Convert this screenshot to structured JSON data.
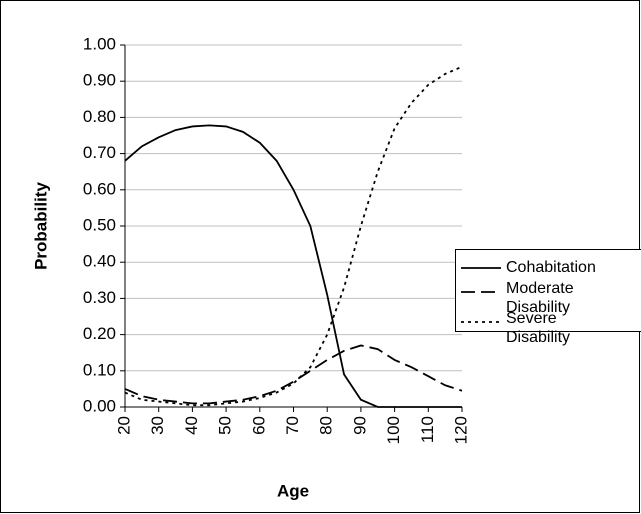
{
  "chart_data": {
    "type": "line",
    "xlabel": "Age",
    "ylabel": "Probability",
    "x": [
      20,
      25,
      30,
      35,
      40,
      45,
      50,
      55,
      60,
      65,
      70,
      75,
      80,
      85,
      90,
      95,
      100,
      105,
      110,
      115,
      120
    ],
    "series": [
      {
        "name": "Cohabitation",
        "color": "#000000",
        "line_style": "solid",
        "values": [
          0.68,
          0.72,
          0.745,
          0.765,
          0.775,
          0.778,
          0.775,
          0.76,
          0.73,
          0.68,
          0.6,
          0.5,
          0.31,
          0.09,
          0.02,
          0.0,
          0.0,
          0.0,
          0.0,
          0.0,
          0.0
        ]
      },
      {
        "name": "Moderate Disability",
        "color": "#000000",
        "line_style": "dashed",
        "values": [
          0.05,
          0.03,
          0.02,
          0.015,
          0.01,
          0.01,
          0.015,
          0.02,
          0.03,
          0.045,
          0.07,
          0.1,
          0.13,
          0.155,
          0.17,
          0.16,
          0.13,
          0.11,
          0.085,
          0.06,
          0.045
        ]
      },
      {
        "name": "Severe Disability",
        "color": "#000000",
        "line_style": "dotted",
        "values": [
          0.04,
          0.02,
          0.015,
          0.01,
          0.005,
          0.005,
          0.01,
          0.015,
          0.025,
          0.04,
          0.065,
          0.11,
          0.2,
          0.33,
          0.5,
          0.65,
          0.77,
          0.84,
          0.89,
          0.92,
          0.94
        ]
      }
    ],
    "xlim": [
      20,
      120
    ],
    "xticks": [
      20,
      30,
      40,
      50,
      60,
      70,
      80,
      90,
      100,
      110,
      120
    ],
    "ylim": [
      0,
      1
    ],
    "yticks": [
      {
        "value": 0,
        "label": "0.00"
      },
      {
        "value": 0.1,
        "label": "0.10"
      },
      {
        "value": 0.2,
        "label": "0.20"
      },
      {
        "value": 0.3,
        "label": "0.30"
      },
      {
        "value": 0.4,
        "label": "0.40"
      },
      {
        "value": 0.5,
        "label": "0.50"
      },
      {
        "value": 0.6,
        "label": "0.60"
      },
      {
        "value": 0.7,
        "label": "0.70"
      },
      {
        "value": 0.8,
        "label": "0.80"
      },
      {
        "value": 0.9,
        "label": "0.90"
      },
      {
        "value": 1,
        "label": "1.00"
      }
    ],
    "grid": true,
    "legend": "right"
  }
}
